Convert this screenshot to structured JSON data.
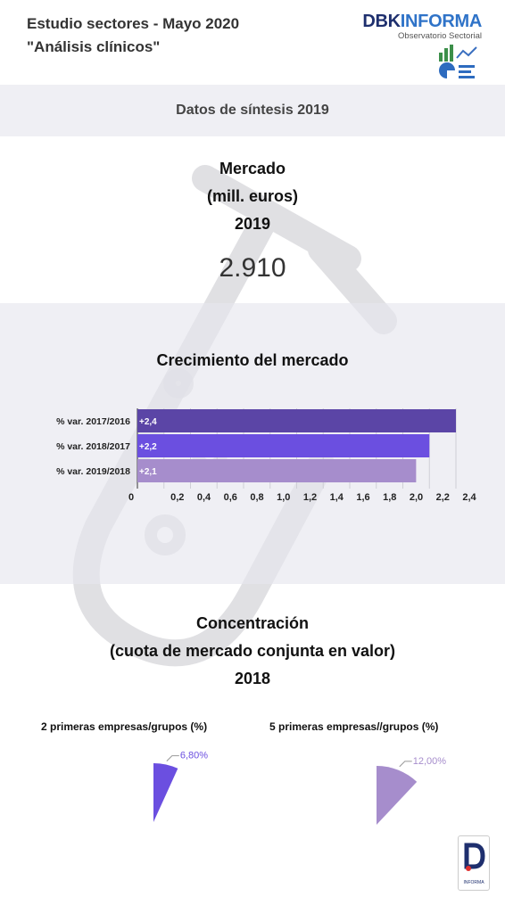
{
  "header": {
    "title_line1": "Estudio sectores - Mayo 2020",
    "title_line2": "\"Análisis clínicos\"",
    "logo_part1": "DBK",
    "logo_part2": "INFORMA",
    "logo_subtitle": "Observatorio Sectorial"
  },
  "synthesis": {
    "title": "Datos de síntesis 2019"
  },
  "market": {
    "line1": "Mercado",
    "line2": "(mill. euros)",
    "line3": "2019",
    "value": "2.910"
  },
  "growth": {
    "title": "Crecimiento del mercado"
  },
  "concentration": {
    "line1": "Concentración",
    "line2": "(cuota de mercado conjunta en valor)",
    "line3": "2018"
  },
  "corner_logo_text": "INFORMA",
  "chart_data": [
    {
      "type": "bar",
      "orientation": "horizontal",
      "categories": [
        "% var. 2017/2016",
        "% var. 2018/2017",
        "% var. 2019/2018"
      ],
      "values": [
        2.4,
        2.2,
        2.1
      ],
      "data_labels": [
        "+2,4",
        "+2,2",
        "+2,1"
      ],
      "colors": [
        "#5b45a6",
        "#6b4fe0",
        "#a68dcc"
      ],
      "xlim": [
        0,
        2.4
      ],
      "xticks": [
        "0",
        "0,2",
        "0,4",
        "0,6",
        "0,8",
        "1,0",
        "1,2",
        "1,4",
        "1,6",
        "1,8",
        "2,0",
        "2,2",
        "2,4"
      ],
      "grid": true
    },
    {
      "type": "pie",
      "title": "2 primeras empresas/grupos (%)",
      "values": [
        6.8
      ],
      "data_labels": [
        "6,80%"
      ],
      "colors": [
        "#6b4fe0"
      ]
    },
    {
      "type": "pie",
      "title": "5 primeras empresas//grupos (%)",
      "values": [
        12.0
      ],
      "data_labels": [
        "12,00%"
      ],
      "colors": [
        "#a68dcc"
      ]
    }
  ]
}
